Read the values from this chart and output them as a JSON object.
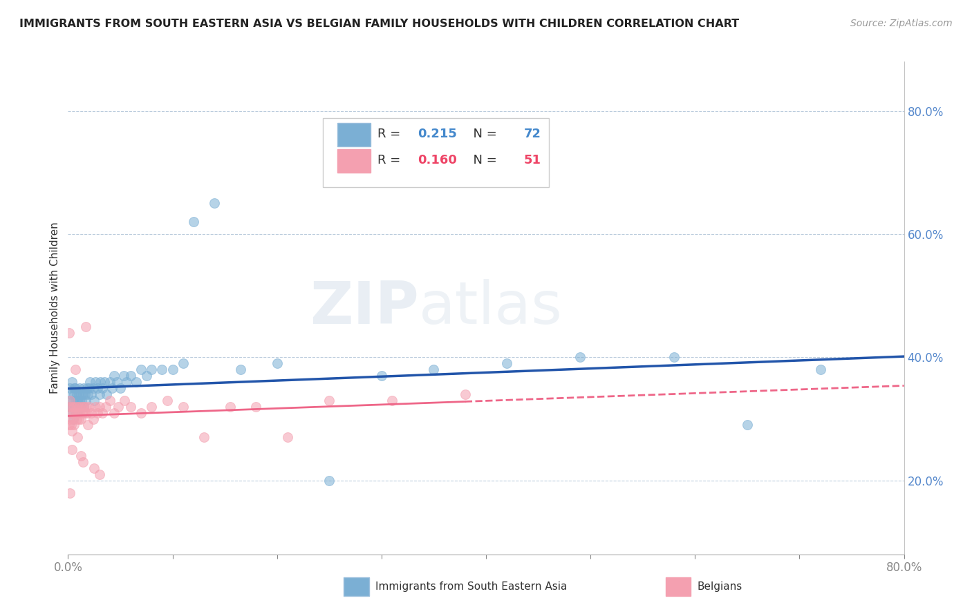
{
  "title": "IMMIGRANTS FROM SOUTH EASTERN ASIA VS BELGIAN FAMILY HOUSEHOLDS WITH CHILDREN CORRELATION CHART",
  "source": "Source: ZipAtlas.com",
  "ylabel": "Family Households with Children",
  "xlim": [
    0.0,
    0.8
  ],
  "ylim": [
    0.08,
    0.88
  ],
  "yticks": [
    0.2,
    0.4,
    0.6,
    0.8
  ],
  "ytick_labels": [
    "20.0%",
    "40.0%",
    "60.0%",
    "80.0%"
  ],
  "xticks": [
    0.0,
    0.1,
    0.2,
    0.3,
    0.4,
    0.5,
    0.6,
    0.7,
    0.8
  ],
  "blue_color": "#7BAFD4",
  "blue_edge_color": "#7BAFD4",
  "pink_color": "#F4A0B0",
  "pink_edge_color": "#F4A0B0",
  "blue_line_color": "#2255AA",
  "pink_line_color": "#EE6688",
  "r_blue": 0.215,
  "n_blue": 72,
  "r_pink": 0.16,
  "n_pink": 51,
  "watermark_zip": "ZIP",
  "watermark_atlas": "atlas",
  "legend_label_blue": "Immigrants from South Eastern Asia",
  "legend_label_pink": "Belgians",
  "blue_scatter_x": [
    0.001,
    0.002,
    0.002,
    0.003,
    0.003,
    0.004,
    0.004,
    0.005,
    0.005,
    0.006,
    0.006,
    0.006,
    0.007,
    0.007,
    0.007,
    0.008,
    0.008,
    0.009,
    0.009,
    0.01,
    0.01,
    0.011,
    0.011,
    0.012,
    0.012,
    0.013,
    0.014,
    0.015,
    0.015,
    0.016,
    0.017,
    0.018,
    0.019,
    0.02,
    0.021,
    0.022,
    0.024,
    0.025,
    0.026,
    0.028,
    0.03,
    0.031,
    0.033,
    0.035,
    0.037,
    0.04,
    0.042,
    0.044,
    0.047,
    0.05,
    0.053,
    0.056,
    0.06,
    0.065,
    0.07,
    0.075,
    0.08,
    0.09,
    0.1,
    0.11,
    0.12,
    0.14,
    0.165,
    0.2,
    0.25,
    0.3,
    0.35,
    0.42,
    0.49,
    0.58,
    0.65,
    0.72
  ],
  "blue_scatter_y": [
    0.32,
    0.33,
    0.35,
    0.31,
    0.34,
    0.32,
    0.36,
    0.3,
    0.33,
    0.32,
    0.34,
    0.35,
    0.31,
    0.33,
    0.35,
    0.32,
    0.34,
    0.31,
    0.33,
    0.32,
    0.34,
    0.33,
    0.35,
    0.32,
    0.34,
    0.33,
    0.34,
    0.32,
    0.35,
    0.34,
    0.33,
    0.35,
    0.34,
    0.35,
    0.36,
    0.34,
    0.35,
    0.33,
    0.36,
    0.35,
    0.34,
    0.36,
    0.35,
    0.36,
    0.34,
    0.36,
    0.35,
    0.37,
    0.36,
    0.35,
    0.37,
    0.36,
    0.37,
    0.36,
    0.38,
    0.37,
    0.38,
    0.38,
    0.38,
    0.39,
    0.62,
    0.65,
    0.38,
    0.39,
    0.2,
    0.37,
    0.38,
    0.39,
    0.4,
    0.4,
    0.29,
    0.38
  ],
  "pink_scatter_x": [
    0.001,
    0.001,
    0.002,
    0.002,
    0.003,
    0.003,
    0.004,
    0.004,
    0.005,
    0.005,
    0.006,
    0.006,
    0.007,
    0.008,
    0.008,
    0.009,
    0.01,
    0.01,
    0.011,
    0.012,
    0.013,
    0.014,
    0.015,
    0.016,
    0.017,
    0.018,
    0.019,
    0.02,
    0.022,
    0.024,
    0.026,
    0.028,
    0.03,
    0.033,
    0.036,
    0.04,
    0.044,
    0.048,
    0.054,
    0.06,
    0.07,
    0.08,
    0.095,
    0.11,
    0.13,
    0.155,
    0.18,
    0.21,
    0.25,
    0.31,
    0.38
  ],
  "pink_scatter_y": [
    0.29,
    0.32,
    0.3,
    0.33,
    0.29,
    0.31,
    0.28,
    0.32,
    0.3,
    0.31,
    0.29,
    0.32,
    0.31,
    0.3,
    0.32,
    0.31,
    0.3,
    0.32,
    0.31,
    0.3,
    0.32,
    0.31,
    0.32,
    0.31,
    0.32,
    0.31,
    0.29,
    0.32,
    0.31,
    0.3,
    0.32,
    0.31,
    0.32,
    0.31,
    0.32,
    0.33,
    0.31,
    0.32,
    0.33,
    0.32,
    0.31,
    0.32,
    0.33,
    0.32,
    0.27,
    0.32,
    0.32,
    0.27,
    0.33,
    0.33,
    0.34
  ],
  "pink_extra_x": [
    0.001,
    0.002,
    0.004,
    0.007,
    0.009,
    0.012,
    0.014,
    0.017,
    0.025,
    0.03
  ],
  "pink_extra_y": [
    0.44,
    0.18,
    0.25,
    0.38,
    0.27,
    0.24,
    0.23,
    0.45,
    0.22,
    0.21
  ]
}
